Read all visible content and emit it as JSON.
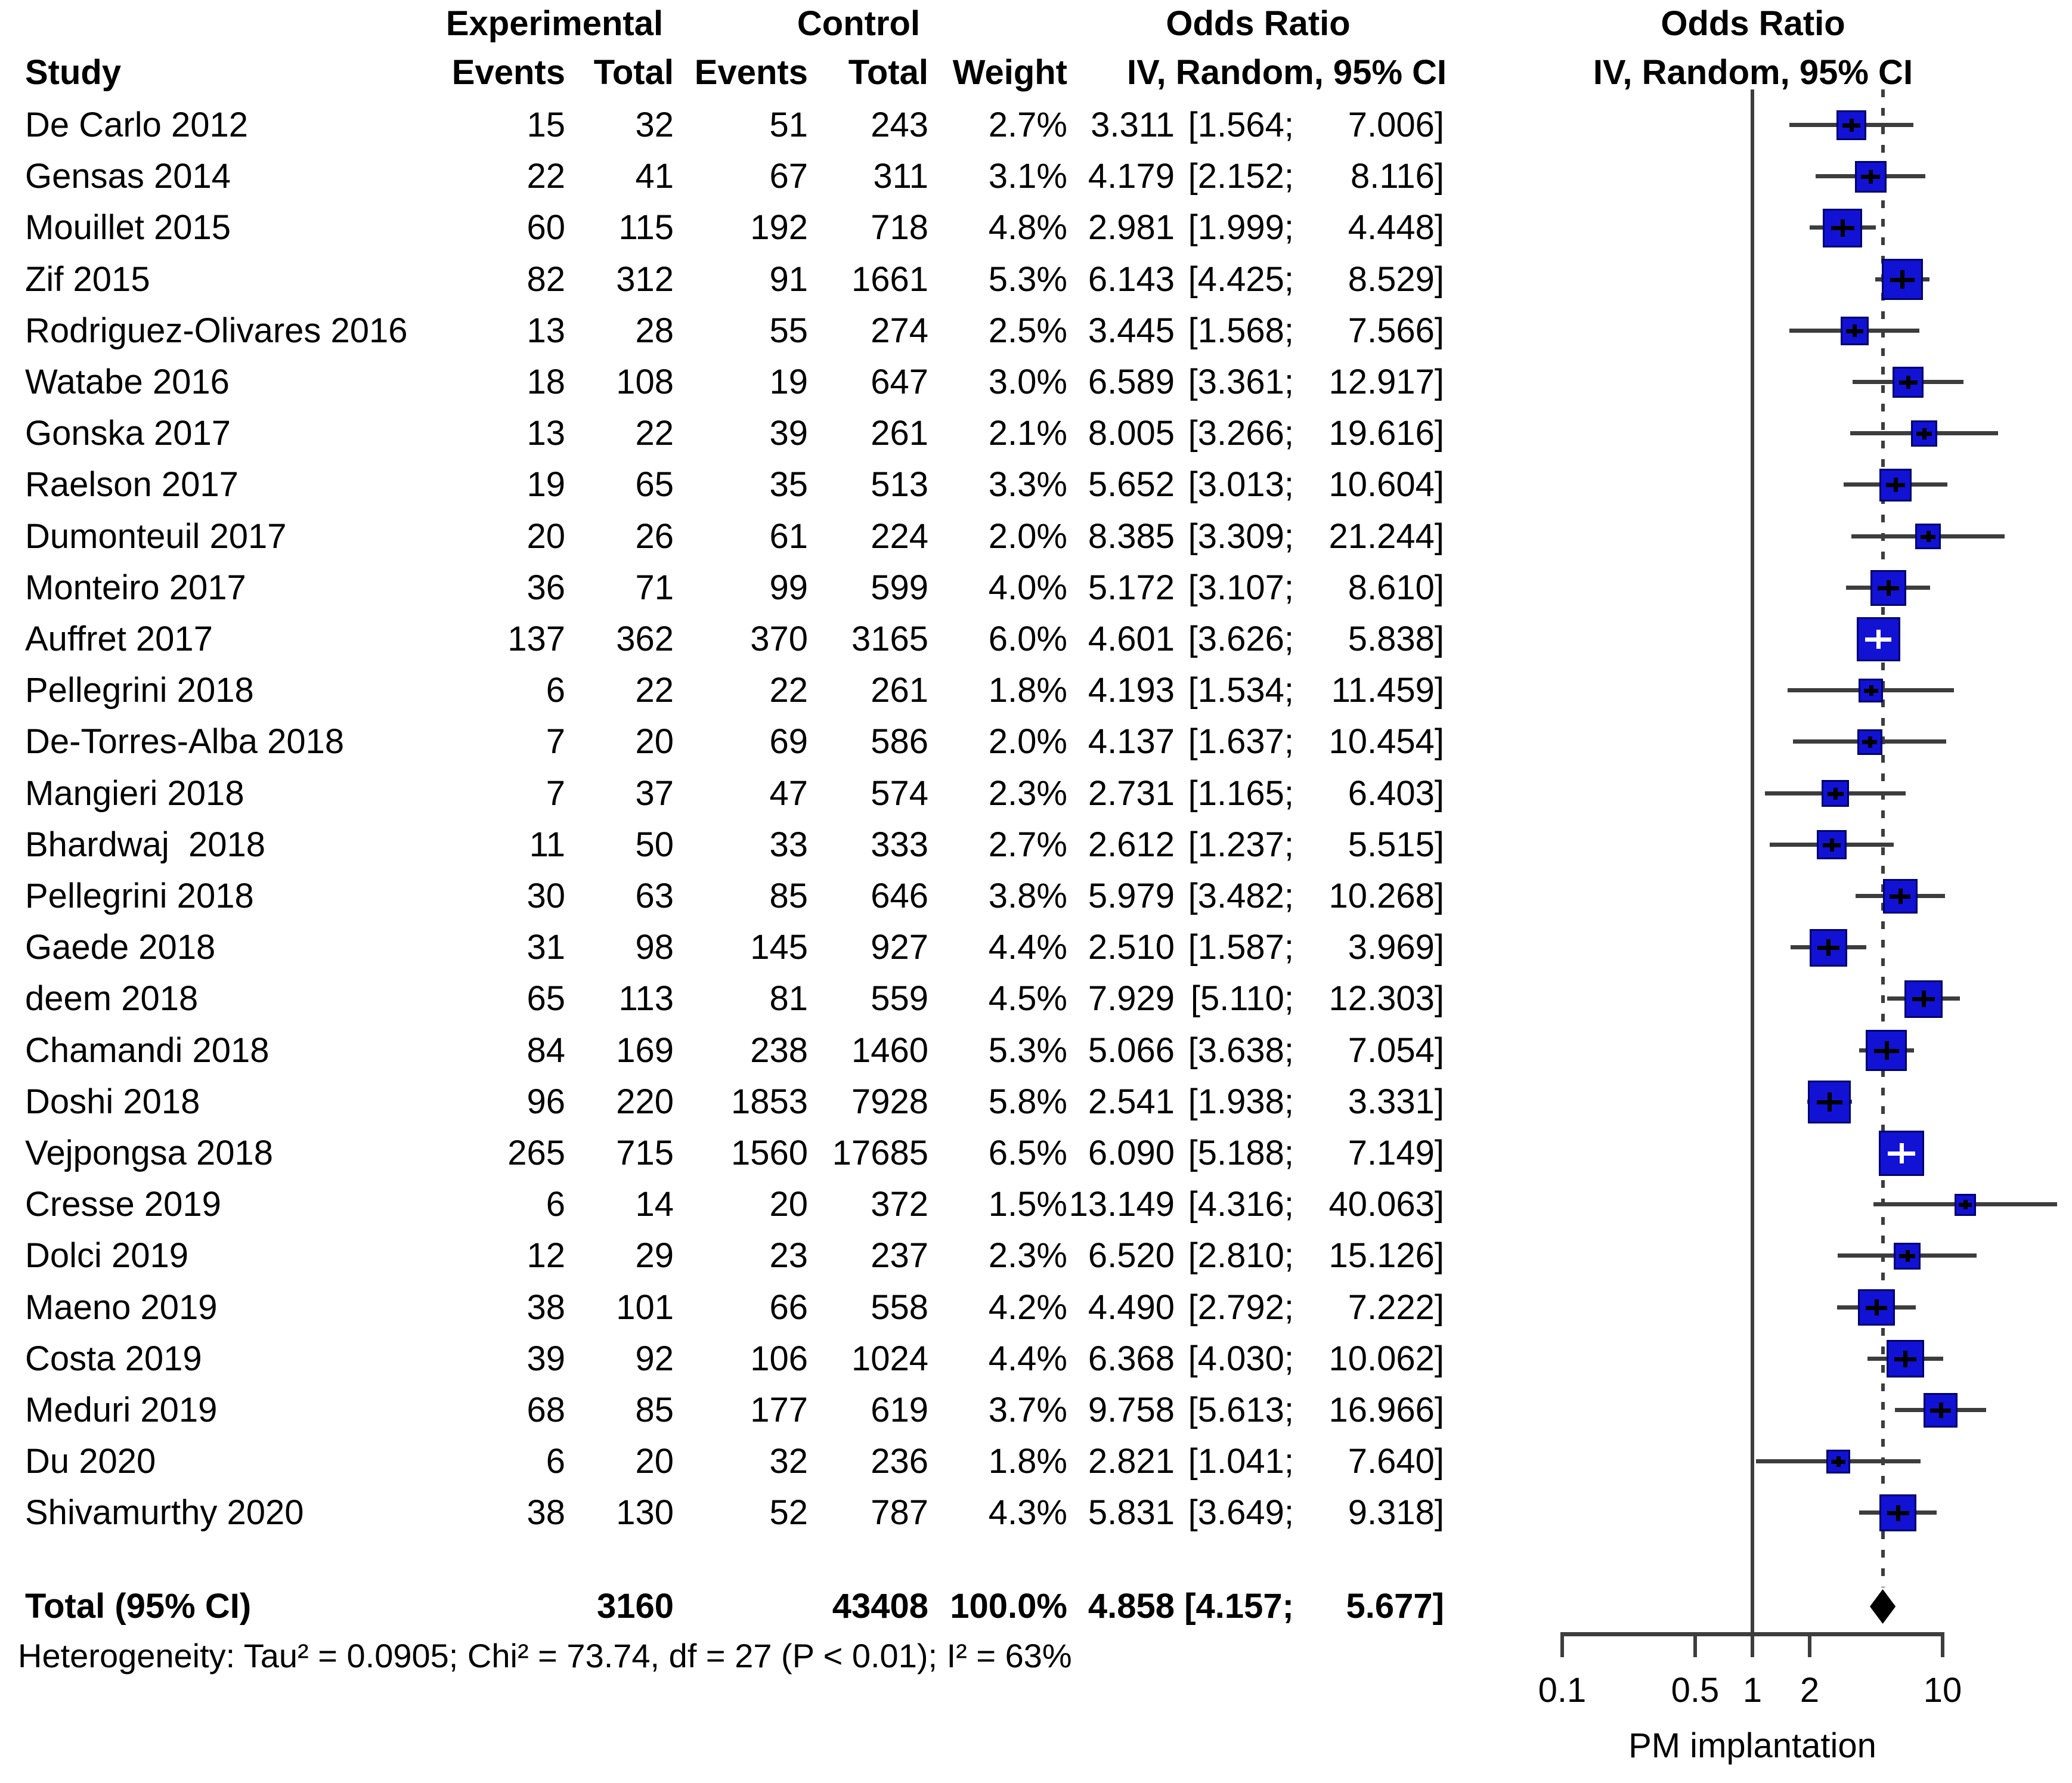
{
  "header": {
    "group_experimental": "Experimental",
    "group_control": "Control",
    "odds_ratio_col_title": "Odds Ratio",
    "plot_title": "Odds Ratio",
    "study": "Study",
    "events": "Events",
    "total": "Total",
    "weight": "Weight",
    "iv_random": "IV, Random, 95% CI",
    "iv_random_plot": "IV, Random, 95% CI"
  },
  "chart_data": {
    "type": "forest",
    "x_axis": {
      "scale": "log10",
      "tick_labels": [
        "0.1",
        "0.5",
        "1",
        "2",
        "10"
      ],
      "tick_values": [
        0.1,
        0.5,
        1,
        2,
        10
      ],
      "range": [
        0.1,
        10
      ],
      "label": "PM implantation",
      "reference_line": 1,
      "pooled_dotted_line": 4.858
    },
    "studies": [
      {
        "name": "De Carlo 2012",
        "exp_events": "15",
        "exp_total": "32",
        "ctrl_events": "51",
        "ctrl_total": "243",
        "weight": "2.7%",
        "weight_value": 2.7,
        "or": "3.311",
        "lo": "1.564",
        "hi": "7.006"
      },
      {
        "name": "Gensas 2014",
        "exp_events": "22",
        "exp_total": "41",
        "ctrl_events": "67",
        "ctrl_total": "311",
        "weight": "3.1%",
        "weight_value": 3.1,
        "or": "4.179",
        "lo": "2.152",
        "hi": "8.116"
      },
      {
        "name": "Mouillet 2015",
        "exp_events": "60",
        "exp_total": "115",
        "ctrl_events": "192",
        "ctrl_total": "718",
        "weight": "4.8%",
        "weight_value": 4.8,
        "or": "2.981",
        "lo": "1.999",
        "hi": "4.448"
      },
      {
        "name": "Zif 2015",
        "exp_events": "82",
        "exp_total": "312",
        "ctrl_events": "91",
        "ctrl_total": "1661",
        "weight": "5.3%",
        "weight_value": 5.3,
        "or": "6.143",
        "lo": "4.425",
        "hi": "8.529"
      },
      {
        "name": "Rodriguez-Olivares 2016",
        "exp_events": "13",
        "exp_total": "28",
        "ctrl_events": "55",
        "ctrl_total": "274",
        "weight": "2.5%",
        "weight_value": 2.5,
        "or": "3.445",
        "lo": "1.568",
        "hi": "7.566"
      },
      {
        "name": "Watabe 2016",
        "exp_events": "18",
        "exp_total": "108",
        "ctrl_events": "19",
        "ctrl_total": "647",
        "weight": "3.0%",
        "weight_value": 3.0,
        "or": "6.589",
        "lo": "3.361",
        "hi": "12.917"
      },
      {
        "name": "Gonska 2017",
        "exp_events": "13",
        "exp_total": "22",
        "ctrl_events": "39",
        "ctrl_total": "261",
        "weight": "2.1%",
        "weight_value": 2.1,
        "or": "8.005",
        "lo": "3.266",
        "hi": "19.616"
      },
      {
        "name": "Raelson 2017",
        "exp_events": "19",
        "exp_total": "65",
        "ctrl_events": "35",
        "ctrl_total": "513",
        "weight": "3.3%",
        "weight_value": 3.3,
        "or": "5.652",
        "lo": "3.013",
        "hi": "10.604"
      },
      {
        "name": "Dumonteuil 2017",
        "exp_events": "20",
        "exp_total": "26",
        "ctrl_events": "61",
        "ctrl_total": "224",
        "weight": "2.0%",
        "weight_value": 2.0,
        "or": "8.385",
        "lo": "3.309",
        "hi": "21.244"
      },
      {
        "name": "Monteiro 2017",
        "exp_events": "36",
        "exp_total": "71",
        "ctrl_events": "99",
        "ctrl_total": "599",
        "weight": "4.0%",
        "weight_value": 4.0,
        "or": "5.172",
        "lo": "3.107",
        "hi": "8.610"
      },
      {
        "name": "Auffret 2017",
        "exp_events": "137",
        "exp_total": "362",
        "ctrl_events": "370",
        "ctrl_total": "3165",
        "weight": "6.0%",
        "weight_value": 6.0,
        "or": "4.601",
        "lo": "3.626",
        "hi": "5.838"
      },
      {
        "name": "Pellegrini 2018",
        "exp_events": "6",
        "exp_total": "22",
        "ctrl_events": "22",
        "ctrl_total": "261",
        "weight": "1.8%",
        "weight_value": 1.8,
        "or": "4.193",
        "lo": "1.534",
        "hi": "11.459"
      },
      {
        "name": "De-Torres-Alba 2018",
        "exp_events": "7",
        "exp_total": "20",
        "ctrl_events": "69",
        "ctrl_total": "586",
        "weight": "2.0%",
        "weight_value": 2.0,
        "or": "4.137",
        "lo": "1.637",
        "hi": "10.454"
      },
      {
        "name": "Mangieri 2018",
        "exp_events": "7",
        "exp_total": "37",
        "ctrl_events": "47",
        "ctrl_total": "574",
        "weight": "2.3%",
        "weight_value": 2.3,
        "or": "2.731",
        "lo": "1.165",
        "hi": "6.403"
      },
      {
        "name": "Bhardwaj  2018",
        "exp_events": "11",
        "exp_total": "50",
        "ctrl_events": "33",
        "ctrl_total": "333",
        "weight": "2.7%",
        "weight_value": 2.7,
        "or": "2.612",
        "lo": "1.237",
        "hi": "5.515"
      },
      {
        "name": "Pellegrini 2018",
        "exp_events": "30",
        "exp_total": "63",
        "ctrl_events": "85",
        "ctrl_total": "646",
        "weight": "3.8%",
        "weight_value": 3.8,
        "or": "5.979",
        "lo": "3.482",
        "hi": "10.268"
      },
      {
        "name": "Gaede 2018",
        "exp_events": "31",
        "exp_total": "98",
        "ctrl_events": "145",
        "ctrl_total": "927",
        "weight": "4.4%",
        "weight_value": 4.4,
        "or": "2.510",
        "lo": "1.587",
        "hi": "3.969"
      },
      {
        "name": "deem 2018",
        "exp_events": "65",
        "exp_total": "113",
        "ctrl_events": "81",
        "ctrl_total": "559",
        "weight": "4.5%",
        "weight_value": 4.5,
        "or": "7.929",
        "lo": "5.110",
        "hi": "12.303"
      },
      {
        "name": "Chamandi 2018",
        "exp_events": "84",
        "exp_total": "169",
        "ctrl_events": "238",
        "ctrl_total": "1460",
        "weight": "5.3%",
        "weight_value": 5.3,
        "or": "5.066",
        "lo": "3.638",
        "hi": "7.054"
      },
      {
        "name": "Doshi 2018",
        "exp_events": "96",
        "exp_total": "220",
        "ctrl_events": "1853",
        "ctrl_total": "7928",
        "weight": "5.8%",
        "weight_value": 5.8,
        "or": "2.541",
        "lo": "1.938",
        "hi": "3.331"
      },
      {
        "name": "Vejpongsa 2018",
        "exp_events": "265",
        "exp_total": "715",
        "ctrl_events": "1560",
        "ctrl_total": "17685",
        "weight": "6.5%",
        "weight_value": 6.5,
        "or": "6.090",
        "lo": "5.188",
        "hi": "7.149"
      },
      {
        "name": "Cresse 2019",
        "exp_events": "6",
        "exp_total": "14",
        "ctrl_events": "20",
        "ctrl_total": "372",
        "weight": "1.5%",
        "weight_value": 1.5,
        "or": "13.149",
        "lo": "4.316",
        "hi": "40.063"
      },
      {
        "name": "Dolci 2019",
        "exp_events": "12",
        "exp_total": "29",
        "ctrl_events": "23",
        "ctrl_total": "237",
        "weight": "2.3%",
        "weight_value": 2.3,
        "or": "6.520",
        "lo": "2.810",
        "hi": "15.126"
      },
      {
        "name": "Maeno 2019",
        "exp_events": "38",
        "exp_total": "101",
        "ctrl_events": "66",
        "ctrl_total": "558",
        "weight": "4.2%",
        "weight_value": 4.2,
        "or": "4.490",
        "lo": "2.792",
        "hi": "7.222"
      },
      {
        "name": "Costa 2019",
        "exp_events": "39",
        "exp_total": "92",
        "ctrl_events": "106",
        "ctrl_total": "1024",
        "weight": "4.4%",
        "weight_value": 4.4,
        "or": "6.368",
        "lo": "4.030",
        "hi": "10.062"
      },
      {
        "name": "Meduri 2019",
        "exp_events": "68",
        "exp_total": "85",
        "ctrl_events": "177",
        "ctrl_total": "619",
        "weight": "3.7%",
        "weight_value": 3.7,
        "or": "9.758",
        "lo": "5.613",
        "hi": "16.966"
      },
      {
        "name": "Du 2020",
        "exp_events": "6",
        "exp_total": "20",
        "ctrl_events": "32",
        "ctrl_total": "236",
        "weight": "1.8%",
        "weight_value": 1.8,
        "or": "2.821",
        "lo": "1.041",
        "hi": "7.640"
      },
      {
        "name": "Shivamurthy 2020",
        "exp_events": "38",
        "exp_total": "130",
        "ctrl_events": "52",
        "ctrl_total": "787",
        "weight": "4.3%",
        "weight_value": 4.3,
        "or": "5.831",
        "lo": "3.649",
        "hi": "9.318"
      }
    ],
    "total": {
      "label": "Total (95% CI)",
      "exp_total": "3160",
      "ctrl_total": "43408",
      "weight": "100.0%",
      "or": "4.858",
      "lo": "4.157",
      "hi": "5.677"
    },
    "heterogeneity": "Heterogeneity: Tau² = 0.0905; Chi² = 73.74, df = 27 (P < 0.01); I² = 63%"
  },
  "colors": {
    "square": "#1212d4",
    "square_border": "#00006e",
    "line": "#3d3d3d",
    "diamond": "#000000",
    "cross_small": "#000000",
    "cross_large": "#ffffff",
    "text": "#000000"
  }
}
